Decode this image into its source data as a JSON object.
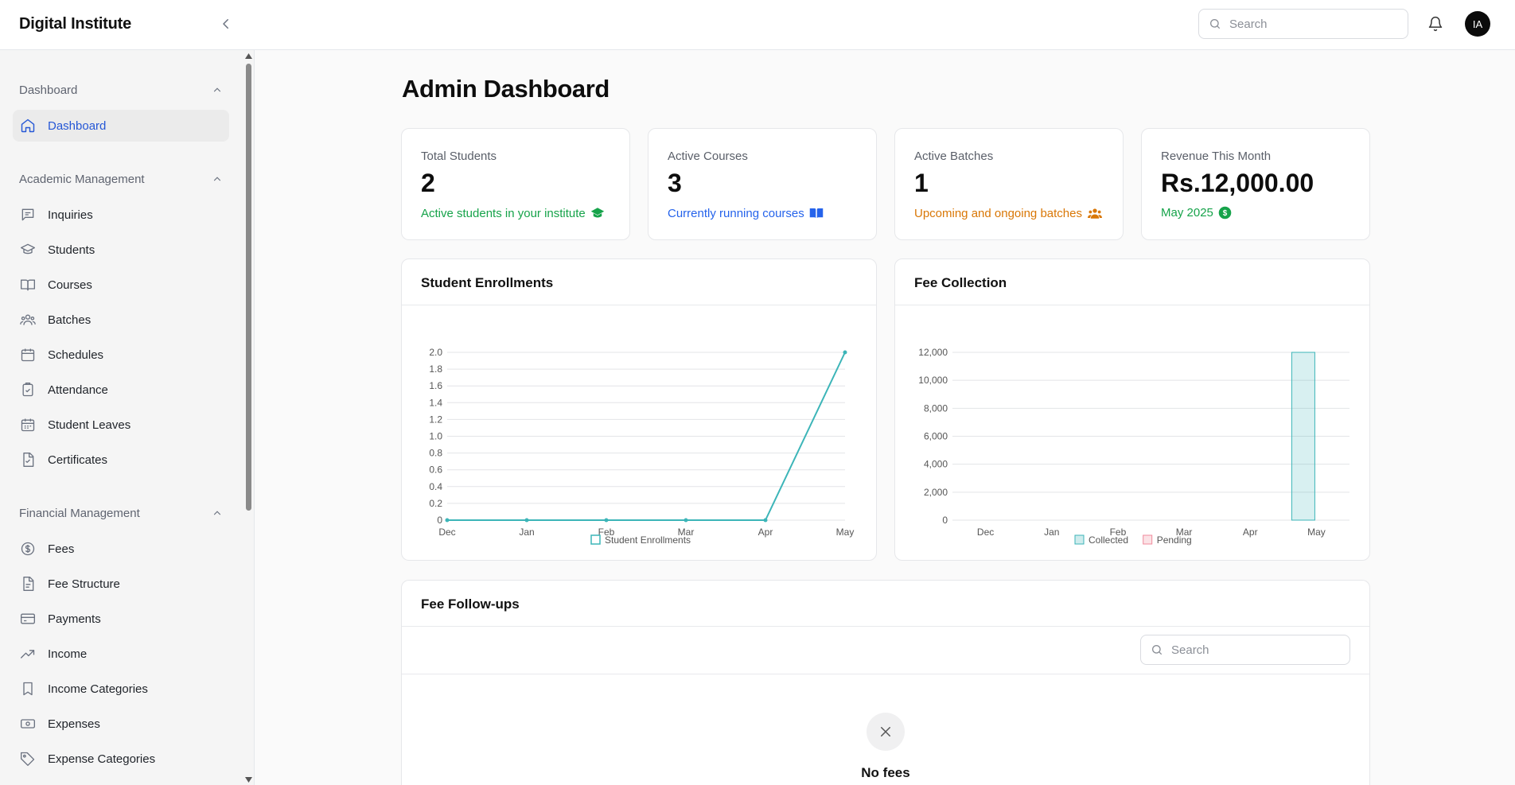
{
  "app": {
    "brand": "Digital Institute"
  },
  "topbar": {
    "search_placeholder": "Search",
    "avatar_initials": "IA"
  },
  "sidebar": {
    "sections": [
      {
        "title": "Dashboard",
        "items": [
          "Dashboard"
        ]
      },
      {
        "title": "Academic Management",
        "items": [
          "Inquiries",
          "Students",
          "Courses",
          "Batches",
          "Schedules",
          "Attendance",
          "Student Leaves",
          "Certificates"
        ]
      },
      {
        "title": "Financial Management",
        "items": [
          "Fees",
          "Fee Structure",
          "Payments",
          "Income",
          "Income Categories",
          "Expenses",
          "Expense Categories"
        ]
      }
    ],
    "active_item": "Dashboard"
  },
  "page": {
    "title": "Admin Dashboard"
  },
  "stats": [
    {
      "label": "Total Students",
      "value": "2",
      "sub": "Active students in your institute",
      "color": "#16a34a",
      "icon": "graduation-cap-icon"
    },
    {
      "label": "Active Courses",
      "value": "3",
      "sub": "Currently running courses",
      "color": "#2563eb",
      "icon": "book-open-icon"
    },
    {
      "label": "Active Batches",
      "value": "1",
      "sub": "Upcoming and ongoing batches",
      "color": "#d97706",
      "icon": "users-icon"
    },
    {
      "label": "Revenue This Month",
      "value": "Rs.12,000.00",
      "sub": "May 2025",
      "color": "#16a34a",
      "icon": "dollar-circle-icon"
    }
  ],
  "enrollments": {
    "title": "Student Enrollments"
  },
  "fees_chart": {
    "title": "Fee Collection"
  },
  "followups": {
    "title": "Fee Follow-ups",
    "search_placeholder": "Search",
    "empty_text": "No fees"
  },
  "chart_data": [
    {
      "type": "line",
      "title": "Student Enrollments",
      "categories": [
        "Dec",
        "Jan",
        "Feb",
        "Mar",
        "Apr",
        "May"
      ],
      "series": [
        {
          "name": "Student Enrollments",
          "values": [
            0,
            0,
            0,
            0,
            0,
            2
          ],
          "color": "#3cb5b8"
        }
      ],
      "ylim": [
        0,
        2
      ],
      "yticks": [
        "0",
        "0.2",
        "0.4",
        "0.6",
        "0.8",
        "1.0",
        "1.2",
        "1.4",
        "1.6",
        "1.8",
        "2.0"
      ],
      "legend": "bottom",
      "grid": true
    },
    {
      "type": "bar",
      "title": "Fee Collection",
      "categories": [
        "Dec",
        "Jan",
        "Feb",
        "Mar",
        "Apr",
        "May"
      ],
      "series": [
        {
          "name": "Collected",
          "values": [
            0,
            0,
            0,
            0,
            0,
            12000
          ],
          "color": "#3cb5b8"
        },
        {
          "name": "Pending",
          "values": [
            0,
            0,
            0,
            0,
            0,
            0
          ],
          "color": "#f08a9c"
        }
      ],
      "ylim": [
        0,
        12000
      ],
      "yticks": [
        "0",
        "2,000",
        "4,000",
        "6,000",
        "8,000",
        "10,000",
        "12,000"
      ],
      "legend": "bottom",
      "grid": true
    }
  ]
}
